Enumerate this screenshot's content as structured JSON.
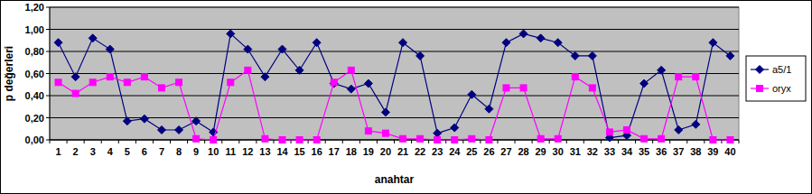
{
  "chart_data": {
    "type": "line",
    "x_label": "anahtar",
    "y_label": "p değerleri",
    "categories": [
      "1",
      "2",
      "3",
      "4",
      "5",
      "6",
      "7",
      "8",
      "9",
      "10",
      "11",
      "12",
      "13",
      "14",
      "15",
      "16",
      "17",
      "18",
      "19",
      "20",
      "21",
      "22",
      "23",
      "24",
      "25",
      "26",
      "27",
      "28",
      "29",
      "30",
      "31",
      "32",
      "33",
      "34",
      "35",
      "36",
      "37",
      "38",
      "39",
      "40"
    ],
    "series": [
      {
        "name": "a5/1",
        "color": "#000080",
        "marker": "diamond",
        "values": [
          0.88,
          0.57,
          0.92,
          0.82,
          0.17,
          0.19,
          0.09,
          0.09,
          0.17,
          0.07,
          0.96,
          0.82,
          0.57,
          0.82,
          0.63,
          0.88,
          0.51,
          0.46,
          0.51,
          0.25,
          0.88,
          0.76,
          0.06,
          0.11,
          0.41,
          0.28,
          0.88,
          0.96,
          0.92,
          0.88,
          0.76,
          0.76,
          0.02,
          0.04,
          0.51,
          0.63,
          0.09,
          0.14,
          0.88,
          0.76
        ]
      },
      {
        "name": "oryx",
        "color": "#ff00ff",
        "marker": "square",
        "values": [
          0.52,
          0.42,
          0.52,
          0.57,
          0.52,
          0.57,
          0.47,
          0.52,
          0.01,
          0.0,
          0.52,
          0.63,
          0.01,
          0.0,
          0.0,
          0.0,
          0.52,
          0.63,
          0.08,
          0.06,
          0.01,
          0.01,
          0.0,
          0.0,
          0.01,
          0.0,
          0.47,
          0.47,
          0.01,
          0.01,
          0.57,
          0.47,
          0.07,
          0.09,
          0.01,
          0.01,
          0.57,
          0.57,
          0.0,
          0.0
        ]
      }
    ],
    "ylim": [
      0,
      1.2
    ],
    "yticks": [
      {
        "value": 0,
        "label": "0,00"
      },
      {
        "value": 0.2,
        "label": "0,20"
      },
      {
        "value": 0.4,
        "label": "0,40"
      },
      {
        "value": 0.6,
        "label": "0,60"
      },
      {
        "value": 0.8,
        "label": "0,80"
      },
      {
        "value": 1.0,
        "label": "1,00"
      },
      {
        "value": 1.2,
        "label": "1,20"
      }
    ],
    "grid": true,
    "legend": "right"
  }
}
